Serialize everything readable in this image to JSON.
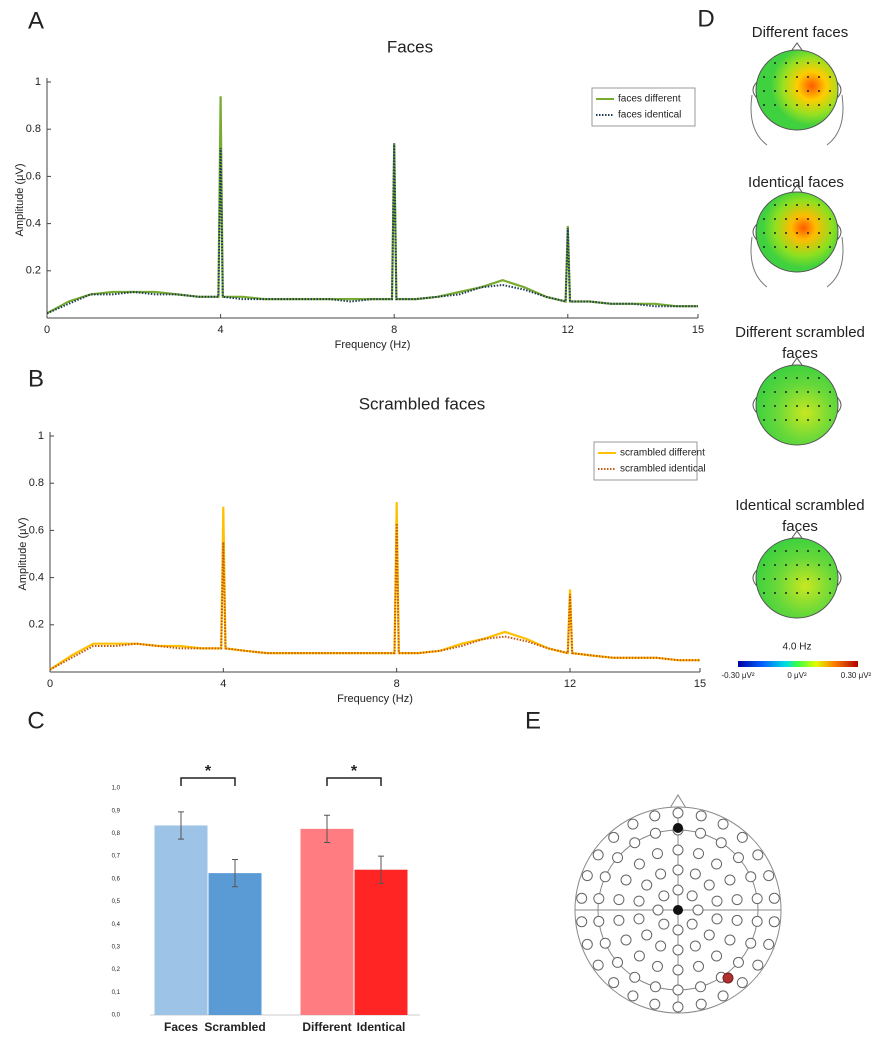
{
  "chart_data": [
    {
      "type": "line",
      "title": "Faces",
      "xlabel": "Frequency (Hz)",
      "ylabel": "Amplitude (μV)",
      "x": [
        0,
        0.5,
        1,
        1.5,
        2,
        2.5,
        3,
        3.5,
        3.95,
        4,
        4.05,
        4.5,
        5,
        5.5,
        6,
        6.5,
        7,
        7.5,
        7.95,
        8,
        8.05,
        8.5,
        9,
        9.5,
        10,
        10.5,
        11,
        11.5,
        11.95,
        12,
        12.05,
        12.5,
        13,
        13.5,
        14,
        14.5,
        15
      ],
      "series": [
        {
          "name": "faces different",
          "color": "#77ac30",
          "style": "solid",
          "values": [
            0.02,
            0.07,
            0.1,
            0.11,
            0.11,
            0.11,
            0.1,
            0.09,
            0.09,
            0.94,
            0.09,
            0.09,
            0.08,
            0.08,
            0.08,
            0.08,
            0.08,
            0.08,
            0.08,
            0.74,
            0.08,
            0.08,
            0.09,
            0.11,
            0.13,
            0.16,
            0.13,
            0.09,
            0.07,
            0.39,
            0.07,
            0.07,
            0.06,
            0.06,
            0.06,
            0.05,
            0.05
          ]
        },
        {
          "name": "faces identical",
          "color": "#1f3b57",
          "style": "dotted",
          "values": [
            0.02,
            0.06,
            0.1,
            0.1,
            0.11,
            0.1,
            0.1,
            0.09,
            0.09,
            0.72,
            0.09,
            0.08,
            0.08,
            0.08,
            0.08,
            0.08,
            0.07,
            0.08,
            0.08,
            0.74,
            0.08,
            0.08,
            0.09,
            0.1,
            0.13,
            0.14,
            0.12,
            0.09,
            0.07,
            0.38,
            0.07,
            0.07,
            0.06,
            0.06,
            0.05,
            0.05,
            0.05
          ]
        }
      ],
      "xlim": [
        0,
        15
      ],
      "xticks": [
        0,
        4,
        8,
        12,
        15
      ],
      "ylim": [
        0,
        1
      ],
      "yticks": [
        0.2,
        0.4,
        0.6,
        0.8,
        1
      ],
      "legend": "upper right"
    },
    {
      "type": "line",
      "title": "Scrambled faces",
      "xlabel": "Frequency (Hz)",
      "ylabel": "Amplitude (μV)",
      "x": [
        0,
        0.5,
        1,
        1.5,
        2,
        2.5,
        3,
        3.5,
        3.95,
        4,
        4.05,
        4.5,
        5,
        5.5,
        6,
        6.5,
        7,
        7.5,
        7.95,
        8,
        8.05,
        8.5,
        9,
        9.5,
        10,
        10.5,
        11,
        11.5,
        11.95,
        12,
        12.05,
        12.5,
        13,
        13.5,
        14,
        14.5,
        15
      ],
      "series": [
        {
          "name": "scrambled different",
          "color": "#ffc000",
          "style": "solid",
          "values": [
            0.01,
            0.07,
            0.12,
            0.12,
            0.12,
            0.11,
            0.11,
            0.1,
            0.1,
            0.7,
            0.1,
            0.09,
            0.08,
            0.08,
            0.08,
            0.08,
            0.08,
            0.08,
            0.08,
            0.72,
            0.08,
            0.08,
            0.09,
            0.12,
            0.14,
            0.17,
            0.14,
            0.1,
            0.08,
            0.35,
            0.08,
            0.07,
            0.06,
            0.06,
            0.06,
            0.05,
            0.05
          ]
        },
        {
          "name": "scrambled identical",
          "color": "#c55a11",
          "style": "dotted",
          "values": [
            0.01,
            0.06,
            0.11,
            0.11,
            0.12,
            0.11,
            0.1,
            0.1,
            0.1,
            0.55,
            0.1,
            0.09,
            0.08,
            0.08,
            0.08,
            0.08,
            0.08,
            0.08,
            0.08,
            0.63,
            0.08,
            0.08,
            0.09,
            0.11,
            0.14,
            0.15,
            0.13,
            0.1,
            0.08,
            0.33,
            0.08,
            0.07,
            0.06,
            0.06,
            0.06,
            0.05,
            0.05
          ]
        }
      ],
      "xlim": [
        0,
        15
      ],
      "xticks": [
        0,
        4,
        8,
        12,
        15
      ],
      "ylim": [
        0,
        1
      ],
      "yticks": [
        0.2,
        0.4,
        0.6,
        0.8,
        1
      ],
      "legend": "upper right"
    },
    {
      "type": "bar",
      "categories": [
        "Faces",
        "Scrambled",
        "Different",
        "Identical"
      ],
      "values": [
        0.835,
        0.625,
        0.82,
        0.64
      ],
      "errors": [
        0.06,
        0.06,
        0.06,
        0.06
      ],
      "colors": [
        "#9dc3e6",
        "#5b9bd5",
        "#ff7c80",
        "#ff2525"
      ],
      "ylim": [
        0,
        1
      ],
      "yticks": [
        {
          "value": 0,
          "label": "0,0"
        },
        {
          "value": 0.1,
          "label": "0,1"
        },
        {
          "value": 0.2,
          "label": "0,2"
        },
        {
          "value": 0.3,
          "label": "0,3"
        },
        {
          "value": 0.4,
          "label": "0,4"
        },
        {
          "value": 0.5,
          "label": "0,5"
        },
        {
          "value": 0.6,
          "label": "0,6"
        },
        {
          "value": 0.7,
          "label": "0,7"
        },
        {
          "value": 0.8,
          "label": "0,8"
        },
        {
          "value": 0.9,
          "label": "0,9"
        },
        {
          "value": 1,
          "label": "1,0"
        }
      ],
      "annotations": [
        "*",
        "*"
      ]
    }
  ],
  "figure": {
    "panel_labels": [
      "A",
      "B",
      "C",
      "D",
      "E"
    ],
    "topomap_titles": [
      [
        "Different faces"
      ],
      [
        "Identical faces"
      ],
      [
        "Different scrambled",
        "faces"
      ],
      [
        "Identical scrambled",
        "faces"
      ]
    ],
    "frequency": "4.0 Hz",
    "colorbar_labels": [
      "-0.30 μV²",
      "0 μV²",
      "0.30 μV²"
    ]
  }
}
